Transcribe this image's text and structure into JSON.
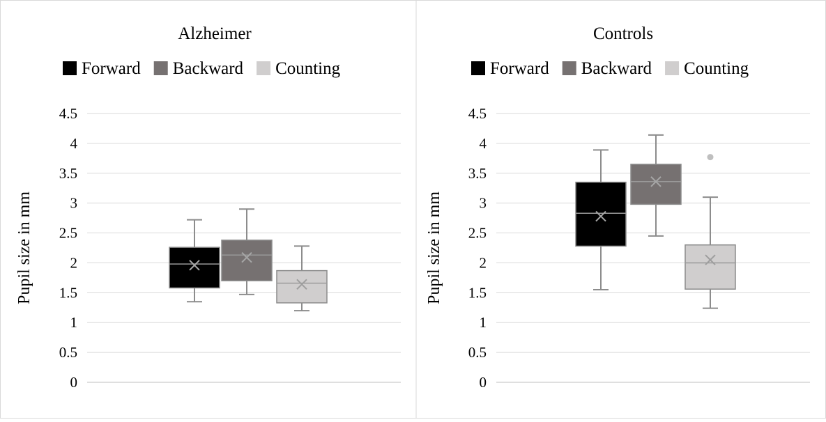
{
  "chart_data": [
    {
      "type": "box",
      "title": "Alzheimer",
      "ylabel": "Pupil size in mm",
      "ylim": [
        0,
        4.5
      ],
      "yticks": [
        "0",
        "0.5",
        "1",
        "1.5",
        "2",
        "2.5",
        "3",
        "3.5",
        "4",
        "4.5"
      ],
      "legend_position": "top",
      "grid": true,
      "series": [
        {
          "name": "Forward",
          "color": "#000000",
          "min": 1.35,
          "q1": 1.58,
          "median": 1.98,
          "q3": 2.26,
          "max": 2.72,
          "mean": 1.96,
          "outliers": []
        },
        {
          "name": "Backward",
          "color": "#767171",
          "min": 1.47,
          "q1": 1.7,
          "median": 2.13,
          "q3": 2.38,
          "max": 2.9,
          "mean": 2.09,
          "outliers": []
        },
        {
          "name": "Counting",
          "color": "#d0cece",
          "min": 1.2,
          "q1": 1.33,
          "median": 1.66,
          "q3": 1.87,
          "max": 2.28,
          "mean": 1.64,
          "outliers": []
        }
      ]
    },
    {
      "type": "box",
      "title": "Controls",
      "ylabel": "Pupil size in mm",
      "ylim": [
        0,
        4.5
      ],
      "yticks": [
        "0",
        "0.5",
        "1",
        "1.5",
        "2",
        "2.5",
        "3",
        "3.5",
        "4",
        "4.5"
      ],
      "legend_position": "top",
      "grid": true,
      "series": [
        {
          "name": "Forward",
          "color": "#000000",
          "min": 1.55,
          "q1": 2.28,
          "median": 2.83,
          "q3": 3.35,
          "max": 3.89,
          "mean": 2.78,
          "outliers": []
        },
        {
          "name": "Backward",
          "color": "#767171",
          "min": 2.45,
          "q1": 2.98,
          "median": 3.36,
          "q3": 3.65,
          "max": 4.14,
          "mean": 3.36,
          "outliers": []
        },
        {
          "name": "Counting",
          "color": "#d0cece",
          "min": 1.24,
          "q1": 1.56,
          "median": 2.0,
          "q3": 2.3,
          "max": 3.1,
          "mean": 2.05,
          "outliers": [
            3.77
          ]
        }
      ]
    }
  ]
}
